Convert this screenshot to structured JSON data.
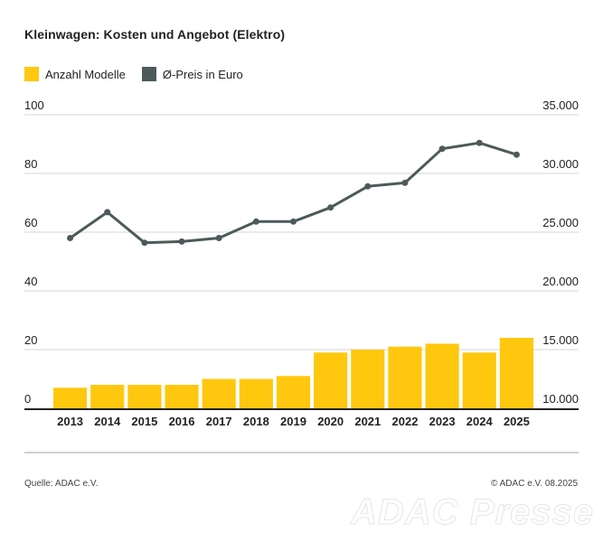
{
  "title": "Kleinwagen: Kosten und Angebot (Elektro)",
  "legend": {
    "models_label": "Anzahl Modelle",
    "price_label": "Ø-Preis in Euro"
  },
  "footer": {
    "source": "Quelle: ADAC e.V.",
    "copyright": "© ADAC e.V. 08.2025"
  },
  "watermark": "ADAC Presse",
  "colors": {
    "bar": "#FFC80F",
    "line": "#4C5A5A",
    "grid": "#d6d6d6",
    "axis": "#222222"
  },
  "chart_data": {
    "type": "bar",
    "title": "Kleinwagen: Kosten und Angebot (Elektro)",
    "categories": [
      "2013",
      "2014",
      "2015",
      "2016",
      "2017",
      "2018",
      "2019",
      "2020",
      "2021",
      "2022",
      "2023",
      "2024",
      "2025"
    ],
    "series": [
      {
        "name": "Anzahl Modelle",
        "type": "bar",
        "axis": "left",
        "values": [
          7,
          8,
          8,
          8,
          10,
          10,
          11,
          19,
          20,
          21,
          22,
          19,
          24
        ]
      },
      {
        "name": "Ø-Preis in Euro",
        "type": "line",
        "axis": "right",
        "values": [
          24500,
          26700,
          24100,
          24200,
          24500,
          25900,
          25900,
          27100,
          28900,
          29200,
          32100,
          32600,
          31600
        ]
      }
    ],
    "left_axis": {
      "ylim": [
        0,
        100
      ],
      "ticks": [
        "0",
        "20",
        "40",
        "60",
        "80",
        "100"
      ]
    },
    "right_axis": {
      "ylim": [
        10000,
        35000
      ],
      "ticks": [
        "10.000",
        "15.000",
        "20.000",
        "25.000",
        "30.000",
        "35.000"
      ]
    },
    "grid": true,
    "legend_position": "top-left"
  }
}
